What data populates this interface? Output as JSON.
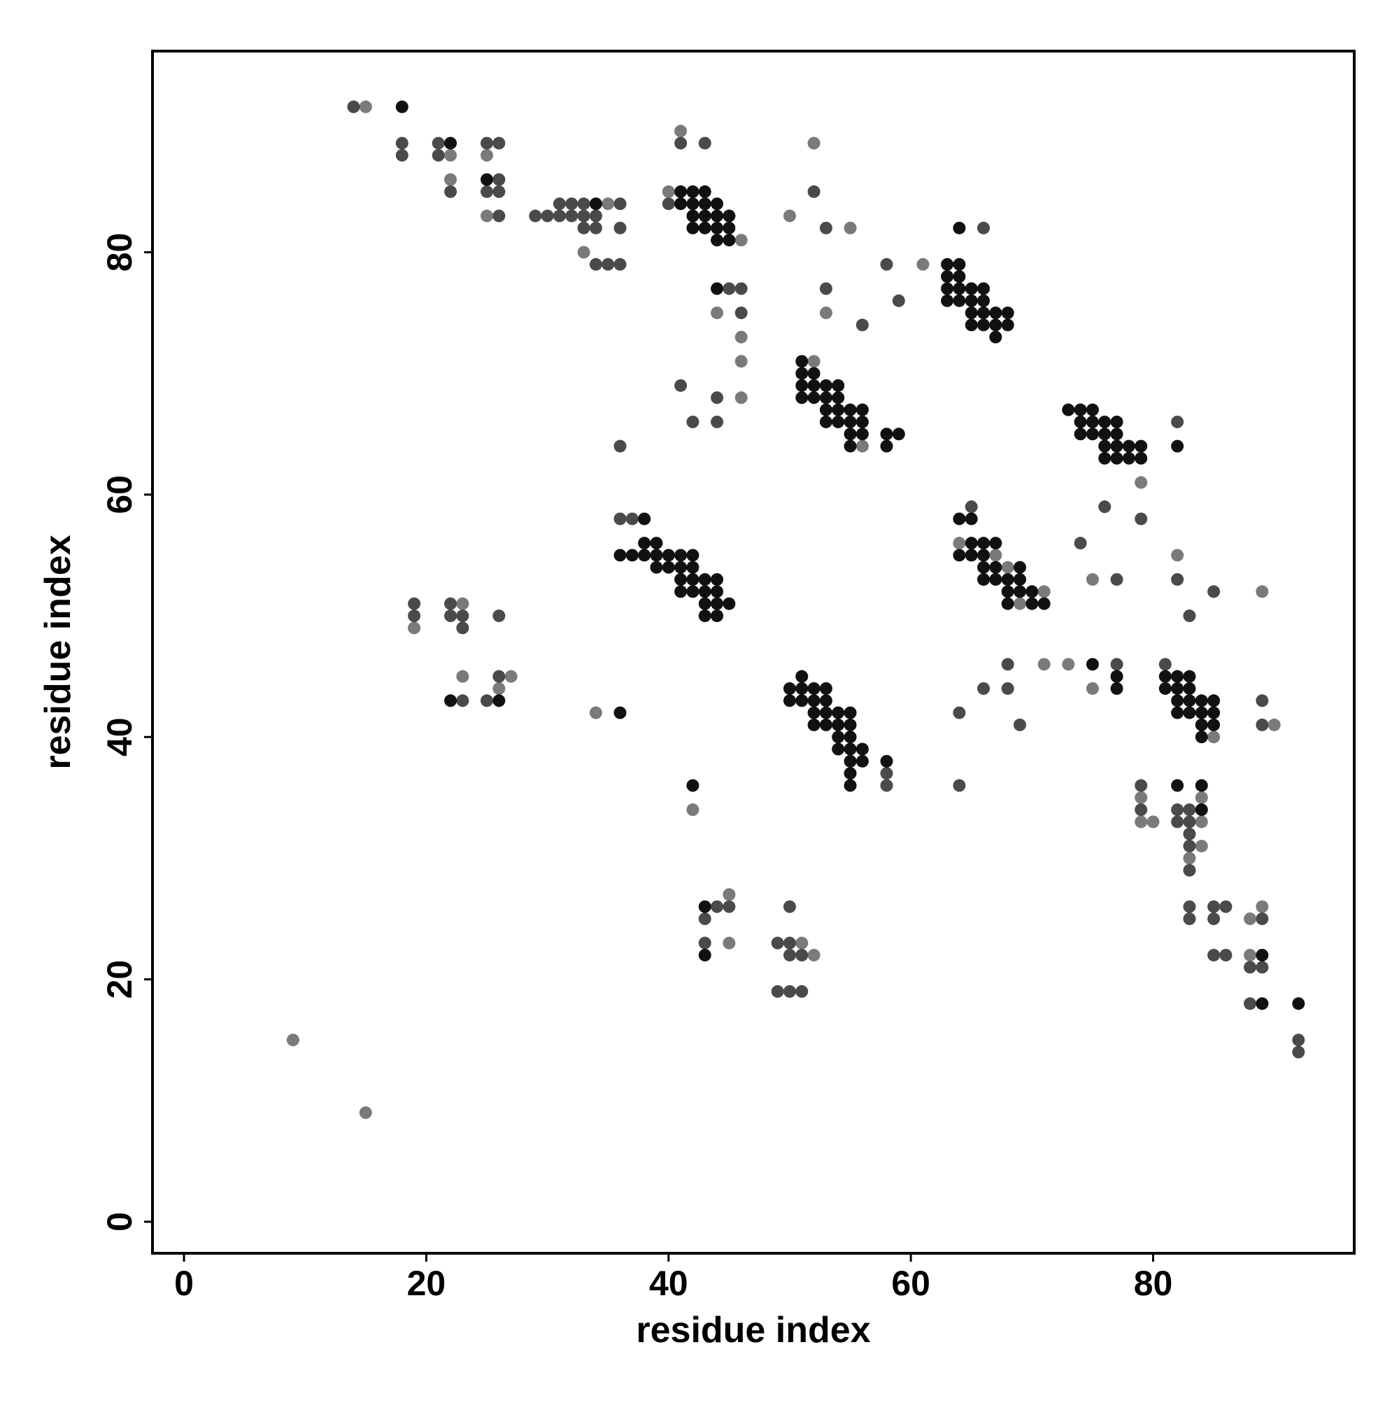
{
  "chart_data": {
    "type": "scatter",
    "x_label": "residue index",
    "y_label": "residue index",
    "xlim": [
      -2.6,
      96.6
    ],
    "ylim": [
      -2.6,
      96.6
    ],
    "xticks": [
      0,
      20,
      40,
      60,
      80
    ],
    "yticks": [
      0,
      20,
      40,
      60,
      80
    ],
    "grid": false,
    "series": [
      {
        "color": "#7a7a7a",
        "x": [
          15,
          41,
          52,
          22,
          25,
          22,
          40,
          35,
          25,
          50,
          55,
          46,
          33,
          61,
          44,
          53,
          46,
          46,
          52,
          46,
          56,
          79,
          64,
          67,
          82,
          68,
          75,
          71,
          89,
          23,
          69,
          19,
          71,
          73,
          23,
          27,
          26,
          75,
          34,
          90,
          85,
          79,
          84,
          42,
          79,
          80,
          84,
          84,
          83,
          45,
          89,
          88,
          45,
          51,
          52,
          88,
          9,
          15
        ],
        "y": [
          92,
          90,
          89,
          88,
          88,
          86,
          85,
          84,
          83,
          83,
          82,
          81,
          80,
          79,
          75,
          75,
          73,
          71,
          71,
          68,
          64,
          61,
          56,
          55,
          55,
          54,
          53,
          52,
          52,
          51,
          51,
          49,
          46,
          46,
          45,
          45,
          44,
          44,
          42,
          41,
          40,
          35,
          35,
          34,
          33,
          33,
          33,
          31,
          30,
          27,
          26,
          25,
          23,
          23,
          22,
          22,
          15,
          9
        ]
      },
      {
        "color": "#4a4a4a",
        "x": [
          14,
          18,
          21,
          25,
          26,
          41,
          43,
          18,
          21,
          26,
          22,
          25,
          26,
          52,
          31,
          32,
          33,
          36,
          40,
          26,
          29,
          30,
          31,
          32,
          33,
          34,
          33,
          34,
          36,
          53,
          66,
          34,
          35,
          36,
          58,
          45,
          46,
          53,
          59,
          46,
          56,
          41,
          44,
          42,
          44,
          82,
          36,
          65,
          76,
          36,
          37,
          79,
          74,
          77,
          82,
          85,
          19,
          22,
          19,
          22,
          23,
          26,
          83,
          23,
          68,
          77,
          81,
          26,
          77,
          66,
          68,
          23,
          25,
          89,
          64,
          69,
          89,
          58,
          58,
          64,
          79,
          79,
          82,
          83,
          82,
          83,
          83,
          83,
          83,
          44,
          45,
          50,
          83,
          85,
          86,
          43,
          83,
          85,
          89,
          43,
          49,
          50,
          50,
          51,
          85,
          86,
          88,
          89,
          49,
          50,
          51,
          88,
          92,
          92
        ],
        "y": [
          92,
          89,
          89,
          89,
          89,
          89,
          89,
          88,
          88,
          86,
          85,
          85,
          85,
          85,
          84,
          84,
          84,
          84,
          84,
          83,
          83,
          83,
          83,
          83,
          83,
          83,
          82,
          82,
          82,
          82,
          82,
          79,
          79,
          79,
          79,
          77,
          77,
          77,
          76,
          75,
          74,
          69,
          68,
          66,
          66,
          66,
          64,
          59,
          59,
          58,
          58,
          58,
          56,
          53,
          53,
          52,
          51,
          51,
          50,
          50,
          50,
          50,
          50,
          49,
          46,
          46,
          46,
          45,
          45,
          44,
          44,
          43,
          43,
          43,
          42,
          41,
          41,
          37,
          36,
          36,
          36,
          34,
          34,
          34,
          33,
          33,
          32,
          31,
          29,
          26,
          26,
          26,
          26,
          26,
          26,
          25,
          25,
          25,
          25,
          23,
          23,
          23,
          22,
          22,
          22,
          22,
          21,
          21,
          19,
          19,
          19,
          18,
          15,
          14
        ]
      },
      {
        "color": "#111111",
        "x": [
          18,
          22,
          25,
          41,
          42,
          43,
          34,
          41,
          42,
          43,
          44,
          42,
          43,
          44,
          45,
          42,
          43,
          44,
          45,
          64,
          44,
          45,
          63,
          64,
          63,
          64,
          44,
          63,
          64,
          65,
          66,
          63,
          64,
          65,
          66,
          65,
          66,
          67,
          68,
          65,
          66,
          67,
          68,
          67,
          51,
          51,
          52,
          51,
          52,
          53,
          54,
          51,
          52,
          53,
          54,
          53,
          54,
          55,
          56,
          73,
          74,
          75,
          53,
          54,
          55,
          56,
          74,
          75,
          76,
          77,
          55,
          56,
          58,
          59,
          74,
          75,
          76,
          77,
          55,
          58,
          76,
          77,
          78,
          79,
          82,
          76,
          77,
          78,
          79,
          38,
          64,
          65,
          38,
          39,
          65,
          66,
          67,
          36,
          37,
          38,
          39,
          40,
          41,
          42,
          64,
          65,
          66,
          39,
          40,
          41,
          42,
          66,
          67,
          69,
          41,
          42,
          43,
          44,
          66,
          67,
          68,
          69,
          41,
          42,
          43,
          44,
          68,
          69,
          70,
          43,
          44,
          45,
          68,
          70,
          71,
          43,
          44,
          75,
          51,
          77,
          81,
          82,
          83,
          50,
          51,
          52,
          53,
          77,
          81,
          82,
          83,
          22,
          26,
          50,
          51,
          52,
          53,
          82,
          83,
          84,
          85,
          36,
          52,
          53,
          54,
          55,
          82,
          83,
          84,
          85,
          52,
          53,
          54,
          55,
          84,
          85,
          54,
          55,
          84,
          54,
          55,
          56,
          55,
          56,
          58,
          55,
          55,
          42,
          82,
          84,
          84,
          43,
          43,
          89,
          89,
          92
        ],
        "y": [
          92,
          89,
          86,
          85,
          85,
          85,
          84,
          84,
          84,
          84,
          84,
          83,
          83,
          83,
          83,
          82,
          82,
          82,
          82,
          82,
          81,
          81,
          79,
          79,
          78,
          78,
          77,
          77,
          77,
          77,
          77,
          76,
          76,
          76,
          76,
          75,
          75,
          75,
          75,
          74,
          74,
          74,
          74,
          73,
          71,
          70,
          70,
          69,
          69,
          69,
          69,
          68,
          68,
          68,
          68,
          67,
          67,
          67,
          67,
          67,
          67,
          67,
          66,
          66,
          66,
          66,
          66,
          66,
          66,
          66,
          65,
          65,
          65,
          65,
          65,
          65,
          65,
          65,
          64,
          64,
          64,
          64,
          64,
          64,
          64,
          63,
          63,
          63,
          63,
          58,
          58,
          58,
          56,
          56,
          56,
          56,
          56,
          55,
          55,
          55,
          55,
          55,
          55,
          55,
          55,
          55,
          55,
          54,
          54,
          54,
          54,
          54,
          54,
          54,
          53,
          53,
          53,
          53,
          53,
          53,
          53,
          53,
          52,
          52,
          52,
          52,
          52,
          52,
          52,
          51,
          51,
          51,
          51,
          51,
          51,
          50,
          50,
          46,
          45,
          45,
          45,
          45,
          45,
          44,
          44,
          44,
          44,
          44,
          44,
          44,
          44,
          43,
          43,
          43,
          43,
          43,
          43,
          43,
          43,
          43,
          43,
          42,
          42,
          42,
          42,
          42,
          42,
          42,
          42,
          42,
          41,
          41,
          41,
          41,
          41,
          41,
          40,
          40,
          40,
          39,
          39,
          39,
          38,
          38,
          38,
          37,
          36,
          36,
          36,
          36,
          34,
          26,
          22,
          22,
          18,
          18
        ]
      }
    ]
  }
}
